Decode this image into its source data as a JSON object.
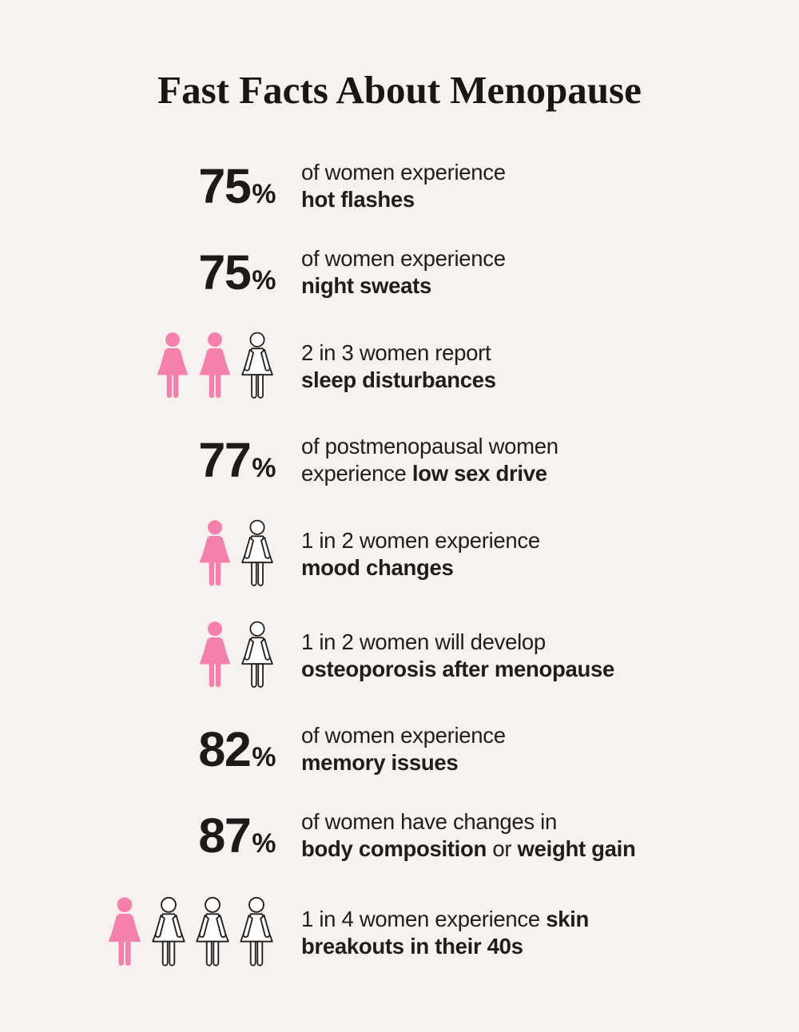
{
  "title": "Fast Facts About Menopause",
  "colors": {
    "background": "#f7f2f0",
    "text": "#1d1b1a",
    "pink": "#f480ab",
    "icon_outline": "#23201e"
  },
  "rows": [
    {
      "type": "stat",
      "value": "75",
      "suffix": "%",
      "lines": [
        [
          {
            "t": "of women experience"
          }
        ],
        [
          {
            "t": "hot flashes",
            "b": true
          }
        ]
      ]
    },
    {
      "type": "stat",
      "value": "75",
      "suffix": "%",
      "lines": [
        [
          {
            "t": "of women experience"
          }
        ],
        [
          {
            "t": "night sweats",
            "b": true
          }
        ]
      ]
    },
    {
      "type": "icons",
      "filled": 2,
      "total": 3,
      "lines": [
        [
          {
            "t": "2 in 3 women report"
          }
        ],
        [
          {
            "t": "sleep disturbances",
            "b": true
          }
        ]
      ]
    },
    {
      "type": "stat",
      "value": "77",
      "suffix": "%",
      "lines": [
        [
          {
            "t": "of postmenopausal women"
          }
        ],
        [
          {
            "t": "experience "
          },
          {
            "t": "low sex drive",
            "b": true
          }
        ]
      ]
    },
    {
      "type": "icons",
      "filled": 1,
      "total": 2,
      "lines": [
        [
          {
            "t": "1 in 2 women experience"
          }
        ],
        [
          {
            "t": "mood changes",
            "b": true
          }
        ]
      ]
    },
    {
      "type": "icons",
      "filled": 1,
      "total": 2,
      "lines": [
        [
          {
            "t": "1 in 2 women will develop"
          }
        ],
        [
          {
            "t": "osteoporosis after menopause",
            "b": true
          }
        ]
      ]
    },
    {
      "type": "stat",
      "value": "82",
      "suffix": "%",
      "lines": [
        [
          {
            "t": "of women experience"
          }
        ],
        [
          {
            "t": "memory issues",
            "b": true
          }
        ]
      ]
    },
    {
      "type": "stat",
      "value": "87",
      "suffix": "%",
      "lines": [
        [
          {
            "t": "of women have changes in"
          }
        ],
        [
          {
            "t": "body composition",
            "b": true
          },
          {
            "t": " or "
          },
          {
            "t": "weight gain",
            "b": true
          }
        ]
      ]
    },
    {
      "type": "icons",
      "filled": 1,
      "total": 4,
      "size": "large",
      "lines": [
        [
          {
            "t": "1 in 4 women experience "
          },
          {
            "t": "skin",
            "b": true
          }
        ],
        [
          {
            "t": "breakouts in their 40s",
            "b": true
          }
        ]
      ]
    }
  ],
  "chart_data": {
    "type": "table",
    "title": "Fast Facts About Menopause",
    "rows": [
      {
        "stat": "75%",
        "fact": "of women experience hot flashes",
        "value_pct": 75
      },
      {
        "stat": "75%",
        "fact": "of women experience night sweats",
        "value_pct": 75
      },
      {
        "stat": "2 in 3",
        "fact": "women report sleep disturbances",
        "value_pct": 66.7
      },
      {
        "stat": "77%",
        "fact": "of postmenopausal women experience low sex drive",
        "value_pct": 77
      },
      {
        "stat": "1 in 2",
        "fact": "women experience mood changes",
        "value_pct": 50
      },
      {
        "stat": "1 in 2",
        "fact": "women will develop osteoporosis after menopause",
        "value_pct": 50
      },
      {
        "stat": "82%",
        "fact": "of women experience memory issues",
        "value_pct": 82
      },
      {
        "stat": "87%",
        "fact": "of women have changes in body composition or weight gain",
        "value_pct": 87
      },
      {
        "stat": "1 in 4",
        "fact": "women experience skin breakouts in their 40s",
        "value_pct": 25
      }
    ]
  }
}
